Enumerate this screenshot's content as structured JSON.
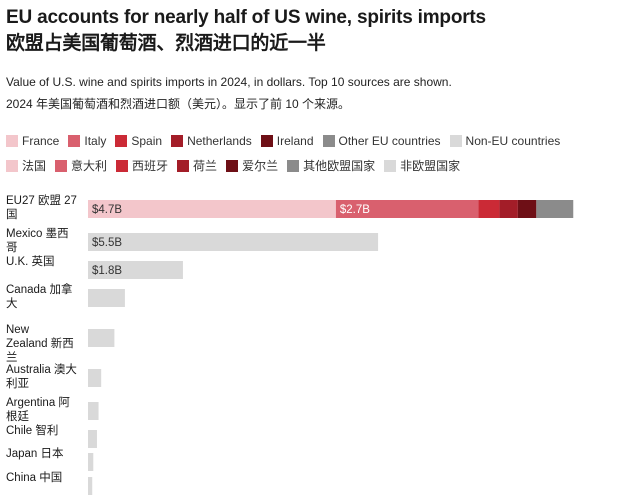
{
  "header": {
    "title_en": "EU accounts for nearly half of US wine, spirits imports",
    "title_zh": "欧盟占美国葡萄酒、烈酒进口的近一半",
    "subtitle_en": "Value of U.S. wine and spirits imports in 2024, in dollars. Top 10 sources are shown.",
    "subtitle_zh": "2024 年美国葡萄酒和烈酒进口额（美元）。显示了前 10 个来源。"
  },
  "colors": {
    "france": "#f3c6cb",
    "italy": "#d9606e",
    "spain": "#cb2a36",
    "netherlands": "#a31d28",
    "ireland": "#6e0f16",
    "other_eu": "#8b8b8b",
    "non_eu": "#d9d9d9"
  },
  "legend_en": [
    {
      "key": "france",
      "label": "France"
    },
    {
      "key": "italy",
      "label": "Italy"
    },
    {
      "key": "spain",
      "label": "Spain"
    },
    {
      "key": "netherlands",
      "label": "Netherlands"
    },
    {
      "key": "ireland",
      "label": "Ireland"
    },
    {
      "key": "other_eu",
      "label": "Other EU countries"
    },
    {
      "key": "non_eu",
      "label": "Non-EU countries"
    }
  ],
  "legend_zh": [
    {
      "key": "france",
      "label": "法国"
    },
    {
      "key": "italy",
      "label": "意大利"
    },
    {
      "key": "spain",
      "label": "西班牙"
    },
    {
      "key": "netherlands",
      "label": "荷兰"
    },
    {
      "key": "ireland",
      "label": "爱尔兰"
    },
    {
      "key": "other_eu",
      "label": "其他欧盟国家"
    },
    {
      "key": "non_eu",
      "label": "非欧盟国家"
    }
  ],
  "chart_data": {
    "type": "bar",
    "orientation": "horizontal",
    "stacked": true,
    "unit": "billion USD",
    "xlim": [
      0,
      10.2
    ],
    "grid": false,
    "rows": [
      {
        "label_lines": [
          "EU27 欧盟 27",
          "国"
        ],
        "segments": [
          {
            "key": "france",
            "value": 4.7,
            "label": "$4.7B"
          },
          {
            "key": "italy",
            "value": 2.7,
            "label": "$2.7B"
          },
          {
            "key": "spain",
            "value": 0.4
          },
          {
            "key": "netherlands",
            "value": 0.35
          },
          {
            "key": "ireland",
            "value": 0.35
          },
          {
            "key": "other_eu",
            "value": 0.7
          }
        ]
      },
      {
        "label_lines": [
          "Mexico 墨西",
          "哥"
        ],
        "segments": [
          {
            "key": "non_eu",
            "value": 5.5,
            "label": "$5.5B"
          }
        ]
      },
      {
        "label_lines": [
          "U.K. 英国"
        ],
        "segments": [
          {
            "key": "non_eu",
            "value": 1.8,
            "label": "$1.8B"
          }
        ]
      },
      {
        "label_lines": [
          "Canada 加拿",
          "大"
        ],
        "segments": [
          {
            "key": "non_eu",
            "value": 0.7
          }
        ]
      },
      {
        "label_lines": [
          "New",
          "Zealand 新西",
          "兰"
        ],
        "segments": [
          {
            "key": "non_eu",
            "value": 0.5
          }
        ]
      },
      {
        "label_lines": [
          "Australia 澳大",
          "利亚"
        ],
        "segments": [
          {
            "key": "non_eu",
            "value": 0.25
          }
        ]
      },
      {
        "label_lines": [
          "Argentina 阿",
          "根廷"
        ],
        "segments": [
          {
            "key": "non_eu",
            "value": 0.2
          }
        ]
      },
      {
        "label_lines": [
          "Chile 智利"
        ],
        "segments": [
          {
            "key": "non_eu",
            "value": 0.17
          }
        ]
      },
      {
        "label_lines": [
          "Japan 日本"
        ],
        "segments": [
          {
            "key": "non_eu",
            "value": 0.1
          }
        ]
      },
      {
        "label_lines": [
          "China 中国"
        ],
        "segments": [
          {
            "key": "non_eu",
            "value": 0.08
          }
        ]
      }
    ]
  }
}
